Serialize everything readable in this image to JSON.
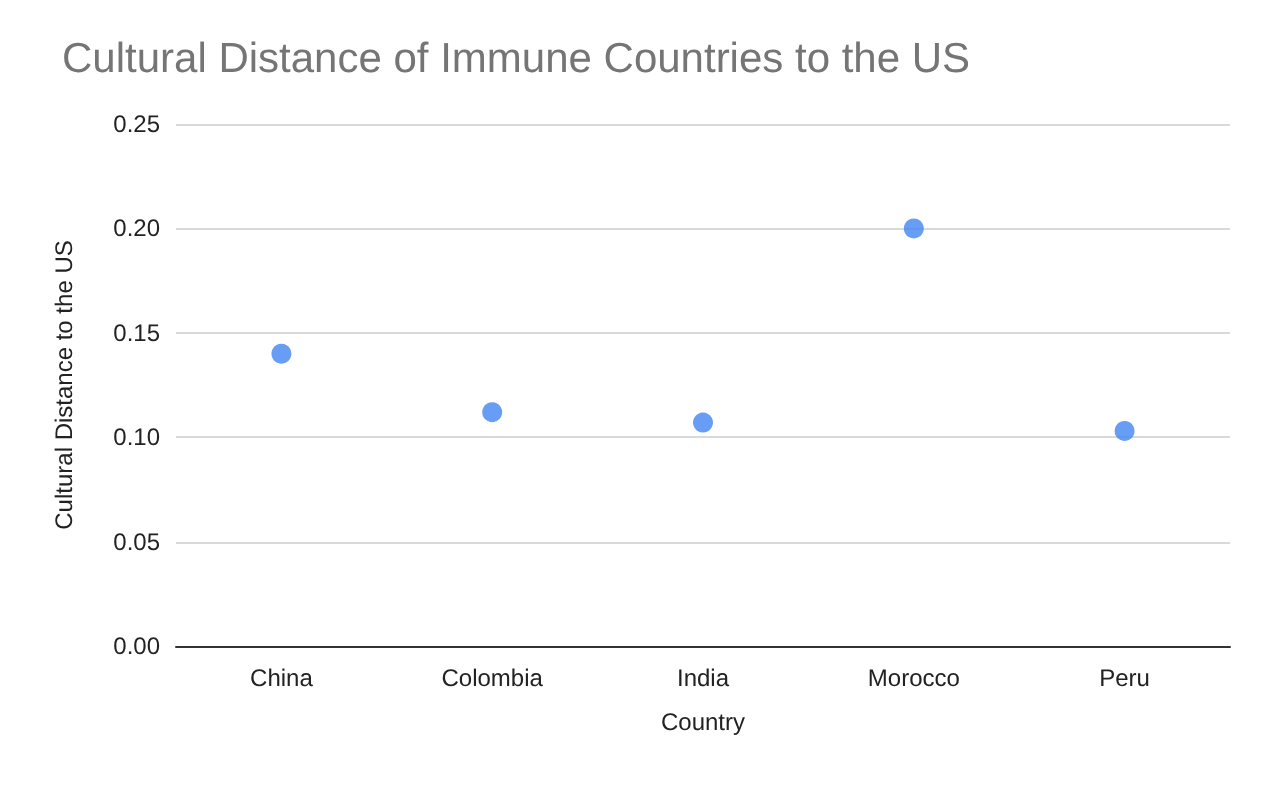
{
  "chart_data": {
    "type": "scatter",
    "title": "Cultural Distance of Immune Countries to the US",
    "xlabel": "Country",
    "ylabel": "Cultural Distance to the US",
    "categories": [
      "China",
      "Colombia",
      "India",
      "Morocco",
      "Peru"
    ],
    "series": [
      {
        "color": "#4285f4",
        "values": [
          0.14,
          0.112,
          0.107,
          0.2,
          0.103
        ]
      }
    ],
    "ylim": [
      0,
      0.25
    ],
    "yticks": [
      {
        "value": 0,
        "label": "0.00"
      },
      {
        "value": 0.05,
        "label": "0.05"
      },
      {
        "value": 0.1,
        "label": "0.10"
      },
      {
        "value": 0.15,
        "label": "0.15"
      },
      {
        "value": 0.2,
        "label": "0.20"
      },
      {
        "value": 0.25,
        "label": "0.25"
      }
    ],
    "grid": "y",
    "marker": "circle"
  }
}
